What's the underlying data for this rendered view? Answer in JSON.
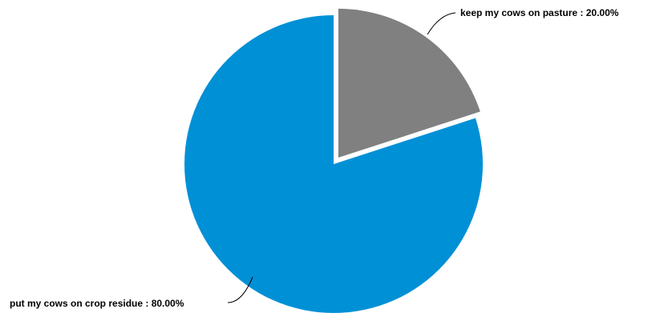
{
  "chart_data": {
    "type": "pie",
    "title": "",
    "slices": [
      {
        "label": "keep my cows on pasture",
        "value": 20.0,
        "display": "keep my cows on pasture : 20.00%",
        "color": "#808080",
        "exploded": true
      },
      {
        "label": "put my cows on crop residue",
        "value": 80.0,
        "display": "put my cows on crop residue : 80.00%",
        "color": "#0090d6",
        "exploded": false
      }
    ],
    "start_angle": "12 o'clock",
    "direction": "clockwise",
    "legend": "none"
  }
}
